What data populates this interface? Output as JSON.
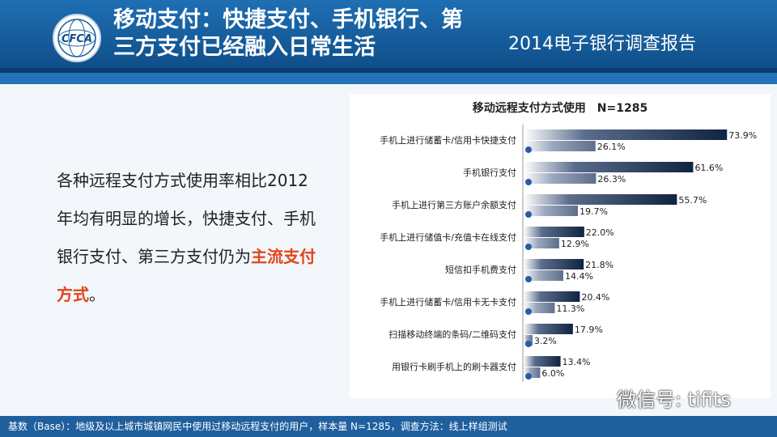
{
  "header": {
    "title_line1": "移动支付：快捷支付、手机银行、第",
    "title_line2": "三方支付已经融入日常生活",
    "report_name": "2014电子银行调查报告",
    "logo_text": "CFCA"
  },
  "summary": {
    "part1": "各种远程支付方式使用率相比2012年均有明显的增长，快捷支付、手机银行支付、第三方支付仍为",
    "highlight": "主流支付方式",
    "part2": "。"
  },
  "chart_data": {
    "type": "bar",
    "title": "移动远程支付方式使用　N=1285",
    "categories": [
      "手机上进行储蓄卡/信用卡快捷支付",
      "手机银行支付",
      "手机上进行第三方账户余额支付",
      "手机上进行储值卡/充值卡在线支付",
      "短信扣手机费支付",
      "手机上进行储蓄卡/信用卡无卡支付",
      "扫描移动终端的条码/二维码支付",
      "用银行卡刷手机上的刷卡器支付"
    ],
    "series": [
      {
        "values": [
          73.9,
          61.6,
          55.7,
          22.0,
          21.8,
          20.4,
          17.9,
          13.4
        ],
        "color": "#1c2f4f"
      },
      {
        "values": [
          26.1,
          26.3,
          19.7,
          12.9,
          14.4,
          11.3,
          3.2,
          6.0
        ],
        "color": "#7b8aa6"
      }
    ],
    "value_labels": [
      [
        "73.9%",
        "61.6%",
        "55.7%",
        "22.0%",
        "21.8%",
        "20.4%",
        "17.9%",
        "13.4%"
      ],
      [
        "26.1%",
        "26.3%",
        "19.7%",
        "12.9%",
        "14.4%",
        "11.3%",
        "3.2%",
        "6.0%"
      ]
    ],
    "marker_color": "#2a5aa8",
    "xlim": [
      0,
      100
    ]
  },
  "footer": {
    "text": "基数（Base）：地级及以上城市城镇网民中使用过移动远程支付的用户，样本量 N=1285，调查方法：线上样组测试"
  },
  "watermark": "微信号: tifits"
}
